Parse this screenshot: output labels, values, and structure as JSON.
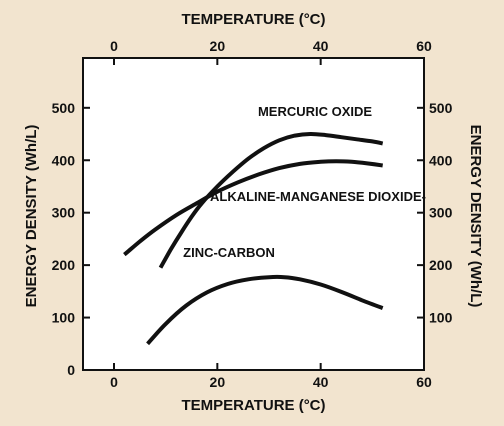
{
  "chart_data": {
    "type": "line",
    "title": "",
    "xlabel": "TEMPERATURE (°C)",
    "xlabel_top": "TEMPERATURE (°C)",
    "ylabel": "ENERGY DENSITY (Wh/L)",
    "ylabel_right": "ENERGY DENSITY (Wh/L)",
    "xlim": [
      -6,
      60
    ],
    "ylim": [
      0,
      595
    ],
    "x_ticks": [
      0,
      20,
      40,
      60
    ],
    "y_ticks": [
      0,
      100,
      200,
      300,
      400,
      500
    ],
    "x_tick_labels_bottom": [
      "0",
      "20",
      "40",
      "60"
    ],
    "x_tick_labels_top": [
      "0",
      "20",
      "40",
      "60"
    ],
    "y_tick_labels_left": [
      "0",
      "100",
      "200",
      "300",
      "400",
      "500"
    ],
    "y_tick_labels_right": [
      "100",
      "200",
      "300",
      "400",
      "500"
    ],
    "grid": false,
    "legend": "none",
    "colors": {
      "background": "#f2e4cf",
      "plot_background": "#ffffff",
      "line": "#111111"
    },
    "series": [
      {
        "name": "MERCURIC OXIDE",
        "x": [
          9,
          11,
          13,
          15,
          17,
          20,
          23,
          26,
          29,
          32,
          35,
          38,
          41,
          44,
          47,
          50,
          52
        ],
        "y": [
          195,
          230,
          262,
          292,
          318,
          350,
          378,
          403,
          423,
          438,
          447,
          450,
          448,
          444,
          440,
          436,
          432
        ]
      },
      {
        "name": "ALKALINE-MANGANESE DIOXIDE",
        "x": [
          2,
          5,
          8,
          12,
          16,
          20,
          24,
          28,
          32,
          36,
          40,
          43,
          46,
          49,
          52
        ],
        "y": [
          220,
          245,
          268,
          295,
          318,
          340,
          358,
          373,
          385,
          393,
          397,
          398,
          397,
          394,
          390
        ]
      },
      {
        "name": "ZINC-CARBON",
        "x": [
          6.5,
          10,
          14,
          18,
          22,
          26,
          30,
          33,
          36,
          40,
          44,
          48,
          52
        ],
        "y": [
          50,
          88,
          123,
          148,
          164,
          173,
          177,
          177,
          173,
          163,
          149,
          133,
          118
        ]
      }
    ]
  }
}
